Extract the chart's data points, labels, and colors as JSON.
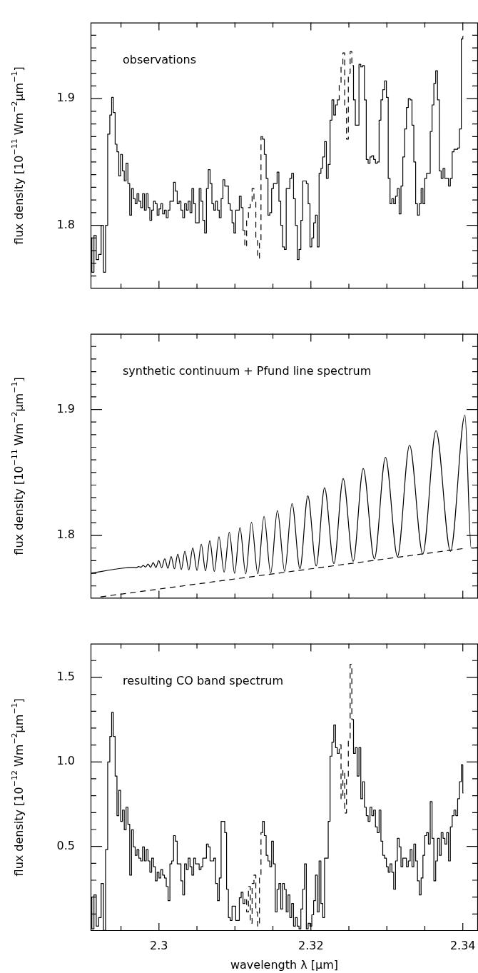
{
  "chart_data": [
    {
      "type": "step",
      "annotations": [
        "observations"
      ],
      "ylabel": "flux density [10$^{−11}$ Wm$^{−2}$μm$^{−1}$]",
      "marker": "none",
      "tick_labels": "y",
      "xlim": [
        2.291,
        2.342
      ],
      "xticks": [
        {
          "value": 2.295,
          "label": null
        },
        2.3,
        {
          "value": 2.305,
          "label": null
        },
        {
          "value": 2.31,
          "label": null
        },
        {
          "value": 2.315,
          "label": null
        },
        2.32,
        {
          "value": 2.325,
          "label": null
        },
        {
          "value": 2.33,
          "label": null
        },
        {
          "value": 2.335,
          "label": null
        },
        2.34
      ],
      "ylim": [
        1.75,
        1.96
      ],
      "yticks": [
        {
          "value": 1.76,
          "label": null
        },
        {
          "value": 1.77,
          "label": null
        },
        {
          "value": 1.78,
          "label": null
        },
        {
          "value": 1.79,
          "label": null
        },
        1.8,
        {
          "value": 1.81,
          "label": null
        },
        {
          "value": 1.82,
          "label": null
        },
        {
          "value": 1.83,
          "label": null
        },
        {
          "value": 1.84,
          "label": null
        },
        {
          "value": 1.85,
          "label": null
        },
        {
          "value": 1.86,
          "label": null
        },
        {
          "value": 1.87,
          "label": null
        },
        {
          "value": 1.88,
          "label": null
        },
        {
          "value": 1.89,
          "label": null
        },
        1.9,
        {
          "value": 1.91,
          "label": null
        },
        {
          "value": 1.92,
          "label": null
        },
        {
          "value": 1.93,
          "label": null
        },
        {
          "value": 1.94,
          "label": null
        },
        {
          "value": 1.95,
          "label": null
        }
      ],
      "x": [
        2.29102,
        2.2913,
        2.29158,
        2.2919,
        2.29222,
        2.29255,
        2.29283,
        2.29311,
        2.29339,
        2.29367,
        2.29387,
        2.29411,
        2.29435,
        2.29459,
        2.29483,
        2.29507,
        2.29531,
        2.29555,
        2.29579,
        2.29603,
        2.29627,
        2.29651,
        2.29675,
        2.29699,
        2.29723,
        2.29747,
        2.29772,
        2.29796,
        2.2982,
        2.29844,
        2.29868,
        2.29892,
        2.29916,
        2.2994,
        2.29964,
        2.29988,
        2.30012,
        2.30036,
        2.3006,
        2.30084,
        2.30108,
        2.30132,
        2.30156,
        2.3018,
        2.30204,
        2.30228,
        2.30253,
        2.30277,
        2.30301,
        2.30325,
        2.30349,
        2.30373,
        2.30397,
        2.30421,
        2.30445,
        2.30469,
        2.30493,
        2.30517,
        2.30541,
        2.30565,
        2.30589,
        2.30613,
        2.30637,
        2.30661,
        2.30685,
        2.30709,
        2.30733,
        2.30758,
        2.30782,
        2.30806,
        2.3083,
        2.30854,
        2.30878,
        2.30902,
        2.30926,
        2.3095,
        2.30974,
        2.30998,
        2.31022,
        2.31046,
        2.3107,
        2.31094,
        2.31118,
        2.31142,
        2.31166,
        2.3119,
        2.31214,
        2.31238,
        2.31263,
        2.31287,
        2.31311,
        2.31335,
        2.31351,
        2.31375,
        2.31399,
        2.31423,
        2.31447,
        2.31471,
        2.31495,
        2.31519,
        2.31543,
        2.31567,
        2.31591,
        2.31615,
        2.31639,
        2.31663,
        2.31687,
        2.31711,
        2.31735,
        2.31759,
        2.31784,
        2.31808,
        2.31832,
        2.31856,
        2.3188,
        2.31904,
        2.31928,
        2.31952,
        2.31976,
        2.32,
        2.32024,
        2.32048,
        2.32072,
        2.32096,
        2.3212,
        2.32144,
        2.32168,
        2.32192,
        2.32216,
        2.3224,
        2.32265,
        2.32289,
        2.32313,
        2.32337,
        2.32361,
        2.32385,
        2.32409,
        2.32433,
        2.32457,
        2.32481,
        2.32505,
        2.32529,
        2.32549,
        2.32573,
        2.32597,
        2.32621,
        2.32645,
        2.32669,
        2.32693,
        2.32717,
        2.32741,
        2.32766,
        2.3279,
        2.32814,
        2.32838,
        2.32862,
        2.32886,
        2.3291,
        2.32934,
        2.32958,
        2.32982,
        2.33006,
        2.3303,
        2.33054,
        2.33078,
        2.33102,
        2.33126,
        2.3315,
        2.33174,
        2.33198,
        2.33222,
        2.33246,
        2.3327,
        2.33295,
        2.33319,
        2.33343,
        2.33367,
        2.33391,
        2.33415,
        2.33439,
        2.33463,
        2.33487,
        2.33511,
        2.33535,
        2.33559,
        2.33583,
        2.33607,
        2.33631,
        2.33655,
        2.33679,
        2.33703,
        2.33727,
        2.33752,
        2.33776,
        2.338,
        2.33824,
        2.33848,
        2.33872,
        2.33896,
        2.3392,
        2.33944,
        2.33968,
        2.33992,
        2.34008
      ],
      "series": [
        {
          "color": "#000000",
          "line_style": "solid",
          "values": [
            1.79,
            1.763,
            1.792,
            1.773,
            1.777,
            1.8,
            1.763,
            1.8,
            1.872,
            1.887,
            1.901,
            1.889,
            1.864,
            1.858,
            1.839,
            1.856,
            1.843,
            1.835,
            1.849,
            1.833,
            1.808,
            1.829,
            1.821,
            1.817,
            1.825,
            1.819,
            1.814,
            1.825,
            1.812,
            1.825,
            1.814,
            1.804,
            1.812,
            1.819,
            1.817,
            1.808,
            1.813,
            1.817,
            1.809,
            1.812,
            1.806,
            1.812,
            1.819,
            1.819,
            1.834,
            1.827,
            1.817,
            1.819,
            1.812,
            1.806,
            1.817,
            1.812,
            1.819,
            1.81,
            1.829,
            1.817,
            1.802,
            1.802,
            1.829,
            1.819,
            1.804,
            1.794,
            1.829,
            1.844,
            1.833,
            1.817,
            1.812,
            1.819,
            1.812,
            1.806,
            1.821,
            1.836,
            1.831,
            1.831,
            1.817,
            1.812,
            1.802,
            1.794,
            1.812,
            1.812,
            1.823,
            1.814,
            1.796,
            null,
            null,
            null,
            null,
            null,
            null,
            null,
            null,
            null,
            1.87,
            1.868,
            1.856,
            1.837,
            1.808,
            1.81,
            1.829,
            1.833,
            1.833,
            1.842,
            1.819,
            1.8,
            1.783,
            1.781,
            1.829,
            1.829,
            1.837,
            1.841,
            1.821,
            1.8,
            1.773,
            1.781,
            1.804,
            1.835,
            1.835,
            1.833,
            1.817,
            1.783,
            1.79,
            1.802,
            1.808,
            1.783,
            1.841,
            1.845,
            1.854,
            1.866,
            1.837,
            1.848,
            1.883,
            1.899,
            1.887,
            1.895,
            1.899,
            null,
            null,
            null,
            null,
            null,
            null,
            null,
            1.926,
            1.899,
            1.879,
            1.879,
            1.927,
            1.925,
            1.926,
            1.899,
            1.852,
            1.849,
            1.854,
            1.855,
            1.852,
            1.849,
            1.85,
            1.883,
            1.899,
            1.907,
            1.914,
            1.901,
            1.837,
            1.817,
            1.821,
            1.817,
            1.823,
            1.829,
            1.809,
            1.831,
            1.854,
            1.876,
            1.893,
            1.9,
            1.899,
            1.879,
            1.85,
            1.817,
            1.808,
            1.817,
            1.829,
            1.817,
            1.837,
            1.841,
            1.841,
            1.874,
            1.895,
            1.912,
            1.922,
            1.899,
            1.843,
            1.837,
            1.845,
            1.837,
            1.837,
            1.831,
            1.837,
            1.858,
            1.86,
            1.86,
            1.861,
            1.876,
            1.947,
            1.949
          ]
        },
        {
          "color": "#000000",
          "line_style": "dashed",
          "x": [
            2.31118,
            2.31142,
            2.31166,
            2.3119,
            2.31214,
            2.31238,
            2.31263,
            2.31287,
            2.31311,
            2.31335,
            2.31351,
            2.32,
            2.32361,
            2.32385,
            2.32409,
            2.32433,
            2.32457,
            2.32481,
            2.32505,
            2.32529,
            2.32549
          ],
          "values": [
            1.796,
            1.783,
            1.804,
            1.814,
            1.819,
            1.829,
            1.819,
            1.788,
            1.774,
            1.786,
            1.87,
            null,
            1.899,
            1.912,
            1.926,
            1.936,
            1.893,
            1.868,
            1.92,
            1.937,
            1.926
          ]
        }
      ]
    },
    {
      "type": "line",
      "annotations": [
        "synthetic continuum + Pfund line spectrum"
      ],
      "ylabel": "flux density [10$^{−11}$ Wm$^{−2}$μm$^{−1}$]",
      "marker": "none",
      "tick_labels": "y",
      "xlim": [
        2.291,
        2.342
      ],
      "xticks": [
        {
          "value": 2.295,
          "label": null
        },
        2.3,
        {
          "value": 2.305,
          "label": null
        },
        {
          "value": 2.31,
          "label": null
        },
        {
          "value": 2.315,
          "label": null
        },
        2.32,
        {
          "value": 2.325,
          "label": null
        },
        {
          "value": 2.33,
          "label": null
        },
        {
          "value": 2.335,
          "label": null
        },
        2.34
      ],
      "ylim": [
        1.75,
        1.96
      ],
      "yticks": [
        {
          "value": 1.76,
          "label": null
        },
        {
          "value": 1.77,
          "label": null
        },
        {
          "value": 1.78,
          "label": null
        },
        {
          "value": 1.79,
          "label": null
        },
        1.8,
        {
          "value": 1.81,
          "label": null
        },
        {
          "value": 1.82,
          "label": null
        },
        {
          "value": 1.83,
          "label": null
        },
        {
          "value": 1.84,
          "label": null
        },
        {
          "value": 1.85,
          "label": null
        },
        {
          "value": 1.86,
          "label": null
        },
        {
          "value": 1.87,
          "label": null
        },
        {
          "value": 1.88,
          "label": null
        },
        {
          "value": 1.89,
          "label": null
        },
        1.9,
        {
          "value": 1.91,
          "label": null
        },
        {
          "value": 1.92,
          "label": null
        },
        {
          "value": 1.93,
          "label": null
        },
        {
          "value": 1.94,
          "label": null
        },
        {
          "value": 1.95,
          "label": null
        }
      ],
      "series": [
        {
          "color": "#000000",
          "line_style": "solid",
          "x": [
            2.291,
            2.29511,
            2.29671,
            2.29701,
            2.29731,
            2.29762,
            2.29792,
            2.29824,
            2.29856,
            2.2989,
            2.29924,
            2.2996,
            2.29996,
            2.30036,
            2.30076,
            2.30118,
            2.3016,
            2.30204,
            2.30248,
            2.30295,
            2.30341,
            2.30393,
            2.30445,
            2.30501,
            2.30557,
            2.30613,
            2.30669,
            2.30729,
            2.3079,
            2.30858,
            2.30926,
            2.30996,
            2.31066,
            2.31142,
            2.31218,
            2.31301,
            2.31383,
            2.31471,
            2.31559,
            2.31655,
            2.31752,
            2.31856,
            2.3196,
            2.3207,
            2.3218,
            2.32303,
            2.32425,
            2.32557,
            2.32689,
            2.32836,
            2.32982,
            2.3314,
            2.33299,
            2.33473,
            2.33647,
            2.33838,
            2.34028,
            2.3411,
            2.34192
          ],
          "values": [
            1.77,
            1.774,
            1.7746,
            1.7744,
            1.7754,
            1.7748,
            1.7762,
            1.775,
            1.7773,
            1.7748,
            1.7785,
            1.7746,
            1.78,
            1.7744,
            1.7816,
            1.774,
            1.7833,
            1.7736,
            1.7853,
            1.7731,
            1.7876,
            1.7727,
            1.7901,
            1.7723,
            1.793,
            1.7719,
            1.7959,
            1.7715,
            1.799,
            1.7709,
            1.8025,
            1.77,
            1.8062,
            1.7696,
            1.8105,
            1.7696,
            1.8151,
            1.77,
            1.8198,
            1.7715,
            1.8254,
            1.7736,
            1.8314,
            1.7758,
            1.8378,
            1.7777,
            1.8452,
            1.7795,
            1.8531,
            1.7814,
            1.862,
            1.7833,
            1.8717,
            1.7853,
            1.8831,
            1.7874,
            1.8955,
            1.79,
            1.7905
          ]
        },
        {
          "color": "#000000",
          "line_style": "dashed",
          "x": [
            2.2923,
            2.3401
          ],
          "values": [
            1.7513,
            1.7897
          ]
        }
      ]
    },
    {
      "type": "step",
      "annotations": [
        "resulting CO band spectrum"
      ],
      "ylabel": "flux density [10$^{−12}$ Wm$^{−2}$μm$^{−1}$]",
      "xlabel": "wavelength λ [μm]",
      "marker": "none",
      "xlim": [
        2.291,
        2.342
      ],
      "xticks": [
        {
          "value": 2.295,
          "label": null
        },
        2.3,
        {
          "value": 2.305,
          "label": null
        },
        {
          "value": 2.31,
          "label": null
        },
        {
          "value": 2.315,
          "label": null
        },
        2.32,
        {
          "value": 2.325,
          "label": null
        },
        {
          "value": 2.33,
          "label": null
        },
        {
          "value": 2.335,
          "label": null
        },
        2.34
      ],
      "ylim": [
        0,
        1.7
      ],
      "yticks": [
        {
          "value": 0.1,
          "label": null
        },
        {
          "value": 0.2,
          "label": null
        },
        {
          "value": 0.3,
          "label": null
        },
        {
          "value": 0.4,
          "label": null
        },
        0.5,
        {
          "value": 0.6,
          "label": null
        },
        {
          "value": 0.7,
          "label": null
        },
        {
          "value": 0.8,
          "label": null
        },
        {
          "value": 0.9,
          "label": null
        },
        {
          "value": 1,
          "label": "1.0"
        },
        {
          "value": 1.1,
          "label": null
        },
        {
          "value": 1.2,
          "label": null
        },
        {
          "value": 1.3,
          "label": null
        },
        {
          "value": 1.4,
          "label": null
        },
        1.5,
        {
          "value": 1.6,
          "label": null
        }
      ],
      "x": [
        2.29102,
        2.2913,
        2.29158,
        2.2919,
        2.29222,
        2.29255,
        2.29283,
        2.29311,
        2.29339,
        2.29367,
        2.29387,
        2.29411,
        2.29435,
        2.29459,
        2.29483,
        2.29507,
        2.29531,
        2.29555,
        2.29579,
        2.29603,
        2.29627,
        2.29651,
        2.29675,
        2.29699,
        2.29723,
        2.29747,
        2.29772,
        2.29796,
        2.2982,
        2.29844,
        2.29868,
        2.29892,
        2.29916,
        2.2994,
        2.29964,
        2.29988,
        2.30012,
        2.30036,
        2.3006,
        2.30084,
        2.30108,
        2.30132,
        2.30156,
        2.3018,
        2.30204,
        2.30228,
        2.30253,
        2.30277,
        2.30301,
        2.30325,
        2.30349,
        2.30373,
        2.30397,
        2.30421,
        2.30445,
        2.30469,
        2.30493,
        2.30517,
        2.30541,
        2.30565,
        2.30589,
        2.30613,
        2.30637,
        2.30661,
        2.30685,
        2.30709,
        2.30733,
        2.30758,
        2.30782,
        2.30806,
        2.3083,
        2.30854,
        2.30878,
        2.30902,
        2.30926,
        2.3095,
        2.30974,
        2.30998,
        2.31022,
        2.31046,
        2.3107,
        2.31094,
        2.31118,
        2.31142,
        2.31166,
        2.3119,
        2.31214,
        2.31238,
        2.31263,
        2.31287,
        2.31311,
        2.31335,
        2.31351,
        2.31375,
        2.31399,
        2.31423,
        2.31447,
        2.31471,
        2.31495,
        2.31519,
        2.31543,
        2.31567,
        2.31591,
        2.31615,
        2.31639,
        2.31663,
        2.31687,
        2.31711,
        2.31735,
        2.31759,
        2.31784,
        2.31808,
        2.31832,
        2.31856,
        2.3188,
        2.31904,
        2.31928,
        2.31952,
        2.31976,
        2.32,
        2.32024,
        2.32048,
        2.32072,
        2.32096,
        2.3212,
        2.32144,
        2.32168,
        2.32192,
        2.32216,
        2.3224,
        2.32265,
        2.32289,
        2.32313,
        2.32337,
        2.32361,
        2.32385,
        2.32409,
        2.32433,
        2.32457,
        2.32481,
        2.32505,
        2.32529,
        2.32549,
        2.32573,
        2.32597,
        2.32621,
        2.32645,
        2.32669,
        2.32693,
        2.32717,
        2.32741,
        2.32766,
        2.3279,
        2.32814,
        2.32838,
        2.32862,
        2.32886,
        2.3291,
        2.32934,
        2.32958,
        2.32982,
        2.33006,
        2.3303,
        2.33054,
        2.33078,
        2.33102,
        2.33126,
        2.3315,
        2.33174,
        2.33198,
        2.33222,
        2.33246,
        2.3327,
        2.33295,
        2.33319,
        2.33343,
        2.33367,
        2.33391,
        2.33415,
        2.33439,
        2.33463,
        2.33487,
        2.33511,
        2.33535,
        2.33559,
        2.33583,
        2.33607,
        2.33631,
        2.33655,
        2.33679,
        2.33703,
        2.33727,
        2.33752,
        2.33776,
        2.338,
        2.33824,
        2.33848,
        2.33872,
        2.33896,
        2.3392,
        2.33944,
        2.33968,
        2.33992,
        2.34008
      ],
      "series": [
        {
          "color": "#000000",
          "line_style": "solid",
          "values": [
            0.196,
            0.012,
            0.213,
            0.028,
            0.079,
            0.28,
            0.003,
            0.481,
            1.0,
            1.151,
            1.293,
            1.151,
            0.916,
            0.682,
            0.832,
            0.648,
            0.715,
            0.598,
            0.732,
            0.631,
            0.33,
            0.598,
            0.497,
            0.447,
            0.481,
            0.43,
            0.414,
            0.497,
            0.414,
            0.481,
            0.414,
            0.347,
            0.43,
            0.38,
            0.296,
            0.347,
            0.313,
            0.363,
            0.33,
            0.313,
            0.263,
            0.179,
            0.397,
            0.414,
            0.564,
            0.531,
            0.397,
            0.397,
            0.296,
            0.213,
            0.397,
            0.363,
            0.43,
            0.38,
            0.33,
            0.43,
            0.397,
            0.397,
            0.363,
            0.38,
            0.43,
            0.43,
            0.514,
            0.497,
            0.414,
            0.414,
            0.43,
            0.28,
            0.179,
            0.313,
            0.648,
            0.648,
            0.581,
            0.246,
            0.079,
            0.062,
            0.146,
            0.146,
            0.062,
            0.062,
            0.196,
            0.229,
            0.162,
            null,
            null,
            null,
            null,
            null,
            null,
            null,
            null,
            null,
            0.581,
            0.648,
            0.564,
            0.447,
            0.414,
            0.38,
            0.531,
            0.397,
            0.112,
            0.246,
            0.28,
            0.129,
            0.28,
            0.246,
            0.112,
            0.213,
            0.079,
            0.162,
            0.028,
            0.079,
            0.028,
            0.012,
            0.129,
            0.246,
            0.397,
            0.012,
            0.045,
            0.028,
            0.095,
            0.179,
            0.33,
            0.112,
            0.414,
            0.162,
            0.079,
            0.43,
            0.43,
            0.648,
            1.034,
            1.117,
            1.218,
            1.084,
            1.05,
            null,
            null,
            null,
            null,
            null,
            null,
            null,
            1.251,
            1.05,
            1.084,
            0.916,
            1.084,
            0.782,
            0.883,
            0.732,
            0.682,
            0.648,
            0.732,
            0.682,
            0.715,
            0.615,
            0.581,
            0.715,
            0.531,
            0.447,
            0.43,
            0.38,
            0.347,
            0.397,
            0.347,
            0.246,
            0.414,
            0.548,
            0.497,
            0.38,
            0.43,
            0.43,
            0.38,
            0.414,
            0.481,
            0.38,
            0.514,
            0.414,
            0.296,
            0.213,
            0.313,
            0.447,
            0.564,
            0.581,
            0.514,
            0.765,
            0.548,
            0.296,
            0.414,
            0.548,
            0.447,
            0.581,
            0.548,
            0.514,
            0.581,
            0.414,
            0.615,
            0.682,
            0.715,
            0.682,
            0.782,
            0.883,
            0.983,
            0.816
          ]
        },
        {
          "color": "#000000",
          "line_style": "dashed",
          "x": [
            2.31118,
            2.31142,
            2.31166,
            2.3119,
            2.31214,
            2.31238,
            2.31263,
            2.31287,
            2.31311,
            2.31335,
            2.31351,
            2.32,
            2.32361,
            2.32385,
            2.32409,
            2.32433,
            2.32457,
            2.32481,
            2.32505,
            2.32529,
            2.32549
          ],
          "values": [
            0.162,
            0.196,
            0.112,
            0.263,
            0.045,
            0.28,
            0.33,
            0.112,
            0.028,
            0.33,
            0.581,
            null,
            1.05,
            1.101,
            0.782,
            0.95,
            0.698,
            0.916,
            1.134,
            1.578,
            1.251
          ]
        }
      ]
    }
  ]
}
